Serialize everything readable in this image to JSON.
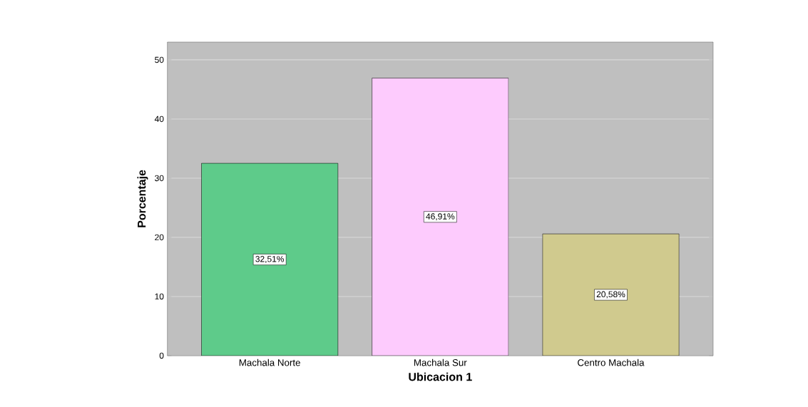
{
  "chart_data": {
    "type": "bar",
    "xlabel": "Ubicacion  1",
    "ylabel": "Porcentaje",
    "categories": [
      "Machala Norte",
      "Machala Sur",
      "Centro Machala"
    ],
    "values": [
      32.51,
      46.91,
      20.58
    ],
    "colors": [
      "#5ecb8a",
      "#fdcbfd",
      "#d0ca8e"
    ],
    "value_labels": [
      "32,51%",
      "46,91%",
      "20,58%"
    ],
    "ylim": [
      0,
      53
    ],
    "yticks": [
      0,
      10,
      20,
      30,
      40,
      50
    ],
    "grid": "y"
  }
}
